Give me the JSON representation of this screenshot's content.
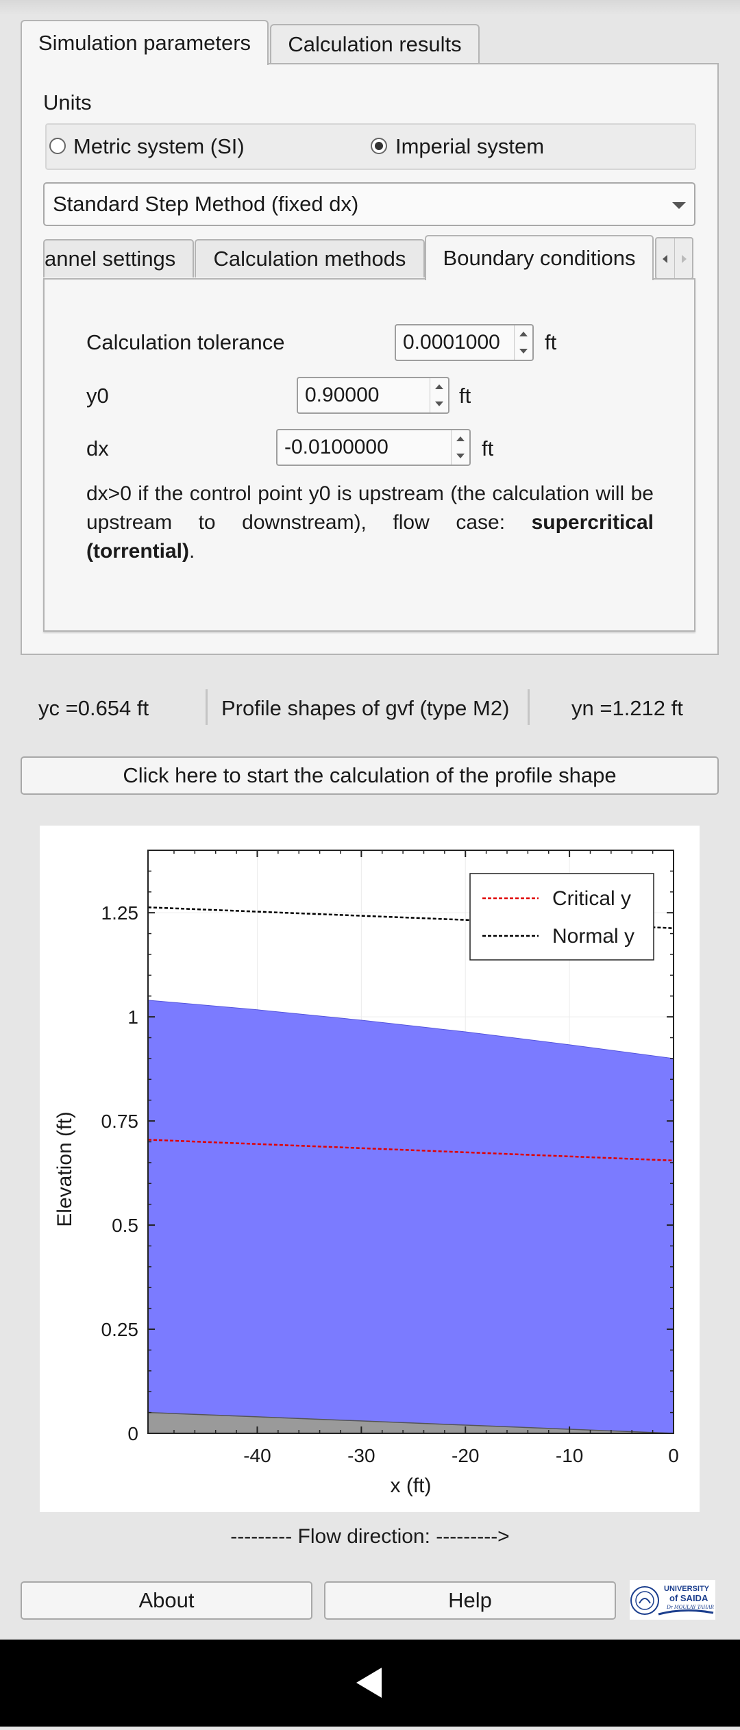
{
  "tabs": [
    "Simulation parameters",
    "Calculation results"
  ],
  "units": {
    "label": "Units",
    "options": [
      "Metric system (SI)",
      "Imperial system"
    ],
    "selected": "Imperial system"
  },
  "method_select": "Standard Step Method (fixed dx)",
  "subtabs": [
    "annel settings",
    "Calculation methods",
    "Boundary conditions"
  ],
  "boundary": {
    "tolerance_label": "Calculation tolerance",
    "tolerance_value": "0.0001000",
    "y0_label": "y0",
    "y0_value": "0.90000",
    "dx_label": "dx",
    "dx_value": "-0.0100000",
    "unit": "ft",
    "desc_main": "dx>0 if the control point y0 is upstream (the calculation will be upstream to downstream), flow case: ",
    "desc_bold": "supercritical (torrential)",
    "desc_end": "."
  },
  "summary": {
    "yc": "yc  =0.654  ft",
    "profile": "Profile shapes of gvf (type M2)",
    "yn": "yn  =1.212  ft"
  },
  "start_button": "Click here to start the calculation of the profile shape",
  "chart_data": {
    "type": "area",
    "xlabel": "x (ft)",
    "ylabel": "Elevation (ft)",
    "xlim": [
      -50.5,
      0
    ],
    "ylim": [
      0,
      1.4
    ],
    "x_ticks": [
      -40,
      -30,
      -20,
      -10,
      0
    ],
    "x_tick_labels": [
      "-40",
      "-30",
      "-20",
      "-10",
      "0"
    ],
    "y_ticks": [
      0,
      0.25,
      0.5,
      0.75,
      1,
      1.25
    ],
    "y_tick_labels": [
      "0",
      "0.25",
      "0.5",
      "0.75",
      "1",
      "1.25"
    ],
    "grid": true,
    "legend_position": "top-right",
    "series": [
      {
        "name": "Critical y",
        "x": [
          -50.5,
          0
        ],
        "values": [
          0.705,
          0.655
        ],
        "style": "dashed",
        "color": "#e00000"
      },
      {
        "name": "Normal y",
        "x": [
          -50.5,
          0
        ],
        "values": [
          1.263,
          1.213
        ],
        "style": "dashed",
        "color": "#000000"
      }
    ],
    "water_surface": {
      "x": [
        -50.5,
        -40,
        -30,
        -20,
        -10,
        0
      ],
      "values": [
        1.04,
        1.017,
        0.992,
        0.964,
        0.933,
        0.9
      ],
      "color": "#7b7bff"
    },
    "channel_bed": {
      "x": [
        -50.5,
        0
      ],
      "values": [
        0.05,
        0.0
      ],
      "color": "#9a9a9a"
    }
  },
  "flow_direction": "--------- Flow direction:  --------->",
  "footer": {
    "about": "About",
    "help": "Help",
    "logo_text": "UNIVERSITY of SAIDA Dr. MOULAY TAHAR"
  }
}
